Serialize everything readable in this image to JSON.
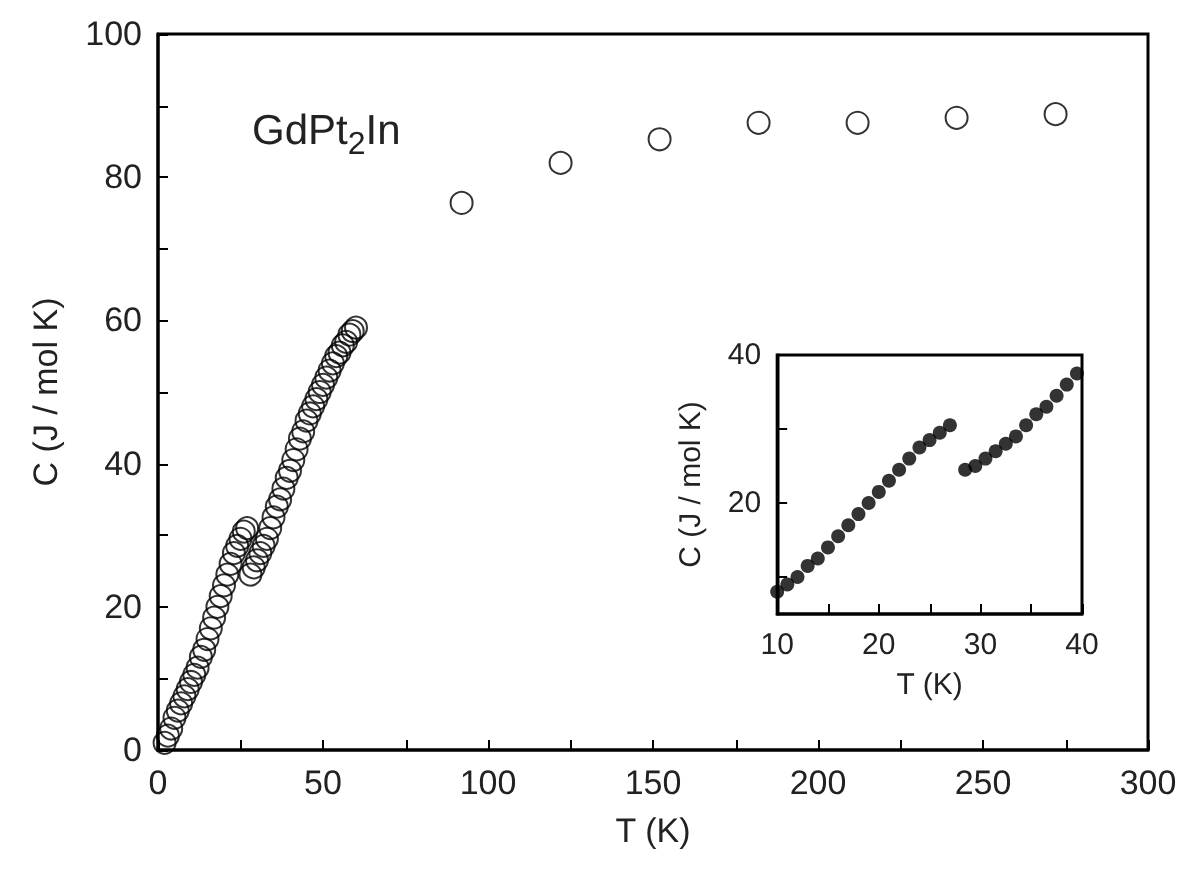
{
  "chart_data": [
    {
      "type": "scatter",
      "xlabel": "T (K)",
      "ylabel": "C (J / mol K)",
      "annotations": [
        "GdPt$_{2}$In"
      ],
      "marker": "circle",
      "color": "#000000",
      "x": [
        2,
        3,
        4,
        5,
        6,
        7,
        8,
        9,
        10,
        11,
        12,
        13,
        14,
        15,
        16,
        17,
        18,
        19,
        20,
        21,
        22,
        23,
        24,
        25,
        26,
        27,
        28,
        29,
        30,
        31,
        32,
        33,
        34,
        35,
        36,
        37,
        38,
        39,
        40,
        41,
        42,
        43,
        44,
        45,
        46,
        47,
        48,
        49,
        50,
        51,
        52,
        53,
        54,
        55,
        56,
        57,
        58,
        59,
        60,
        92,
        122,
        152,
        182,
        212,
        242,
        272
      ],
      "values": [
        1,
        2,
        3,
        4.5,
        5.5,
        6.5,
        7.5,
        8.5,
        9.5,
        10.5,
        11.5,
        13,
        14,
        15.5,
        17,
        18.5,
        20,
        21.5,
        23,
        24.5,
        26,
        27.5,
        28.5,
        29.5,
        30.5,
        31,
        24.5,
        25.5,
        26.5,
        27.5,
        28.5,
        29.5,
        31,
        32.5,
        34,
        35,
        36.5,
        38,
        39,
        40.5,
        42,
        43.5,
        44.5,
        46,
        47,
        48,
        49,
        50,
        51,
        52,
        53,
        54,
        55,
        55.5,
        56.5,
        57,
        58,
        58.5,
        59,
        76.4,
        82,
        85.3,
        87.6,
        87.6,
        88.3,
        88.8
      ],
      "xlim": [
        0,
        300
      ],
      "xticks": [
        0,
        {
          "value": 25,
          "label": null
        },
        50,
        {
          "value": 75,
          "label": null
        },
        100,
        {
          "value": 125,
          "label": null
        },
        150,
        {
          "value": 175,
          "label": null
        },
        200,
        {
          "value": 225,
          "label": null
        },
        250,
        {
          "value": 275,
          "label": null
        },
        300
      ],
      "ylim": [
        0,
        100
      ],
      "yticks": [
        0,
        {
          "value": 10,
          "label": null
        },
        20,
        {
          "value": 30,
          "label": null
        },
        40,
        {
          "value": 50,
          "label": null
        },
        60,
        {
          "value": 70,
          "label": null
        },
        80,
        {
          "value": 90,
          "label": null
        },
        100
      ]
    },
    {
      "type": "scatter",
      "xlabel": "T (K)",
      "ylabel": "C (J / mol K)",
      "marker": "circle",
      "color": "#000000",
      "x": [
        10,
        11,
        12,
        13,
        14,
        15,
        16,
        17,
        18,
        19,
        20,
        21,
        22,
        23,
        24,
        25,
        26,
        27,
        28.5,
        29.5,
        30.5,
        31.5,
        32.5,
        33.5,
        34.5,
        35.5,
        36.5,
        37.5,
        38.5,
        39.5
      ],
      "values": [
        8,
        9,
        10,
        11.5,
        12.5,
        14,
        15.5,
        17,
        18.5,
        20,
        21.5,
        23,
        24.5,
        26,
        27.5,
        28.5,
        29.5,
        30.5,
        24.5,
        25,
        26,
        27,
        28,
        29,
        30.5,
        32,
        33,
        34.5,
        36,
        37.5
      ],
      "xlim": [
        10,
        40
      ],
      "xticks": [
        10,
        {
          "value": 15,
          "label": null
        },
        20,
        {
          "value": 25,
          "label": null
        },
        30,
        {
          "value": 35,
          "label": null
        },
        40
      ],
      "ylim": [
        5,
        40
      ],
      "yticks": [
        {
          "value": 10,
          "label": null
        },
        20,
        {
          "value": 30,
          "label": null
        },
        40
      ]
    }
  ]
}
